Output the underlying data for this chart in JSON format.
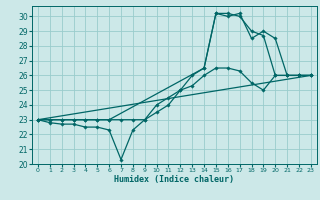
{
  "xlabel": "Humidex (Indice chaleur)",
  "bg_color": "#cce8e8",
  "line_color": "#006666",
  "grid_color": "#99cccc",
  "xlim": [
    -0.5,
    23.5
  ],
  "ylim": [
    20,
    30.7
  ],
  "xticks": [
    0,
    1,
    2,
    3,
    4,
    5,
    6,
    7,
    8,
    9,
    10,
    11,
    12,
    13,
    14,
    15,
    16,
    17,
    18,
    19,
    20,
    21,
    22,
    23
  ],
  "yticks": [
    20,
    21,
    22,
    23,
    24,
    25,
    26,
    27,
    28,
    29,
    30
  ],
  "lines": [
    {
      "x": [
        0,
        1,
        2,
        3,
        4,
        5,
        6,
        7,
        8,
        9,
        10,
        11,
        12,
        13,
        14,
        15,
        16,
        17,
        18,
        19,
        20,
        21,
        22,
        23
      ],
      "y": [
        23,
        22.8,
        22.7,
        22.7,
        22.5,
        22.5,
        22.3,
        20.3,
        22.3,
        23.0,
        24.0,
        24.5,
        25.0,
        25.3,
        26.0,
        26.5,
        26.5,
        26.3,
        25.5,
        25.0,
        26.0,
        26.0,
        26.0,
        26.0
      ]
    },
    {
      "x": [
        0,
        1,
        2,
        3,
        4,
        5,
        6,
        7,
        8,
        9,
        10,
        11,
        12,
        13,
        14,
        15,
        16,
        17,
        18,
        19,
        20,
        21,
        22,
        23
      ],
      "y": [
        23,
        23,
        23,
        23,
        23,
        23,
        23,
        23,
        23,
        23,
        23.5,
        24.0,
        25.0,
        26.0,
        26.5,
        30.2,
        30.2,
        30.0,
        29.0,
        28.7,
        26.0,
        26.0,
        26.0,
        26.0
      ]
    },
    {
      "x": [
        0,
        1,
        2,
        3,
        4,
        5,
        6,
        14,
        15,
        16,
        17,
        18,
        19,
        20,
        21,
        22,
        23
      ],
      "y": [
        23,
        23,
        23,
        23,
        23,
        23,
        23,
        26.5,
        30.2,
        30.0,
        30.2,
        28.5,
        29.0,
        28.5,
        26.0,
        26.0,
        26.0
      ]
    },
    {
      "x": [
        0,
        23
      ],
      "y": [
        23,
        26.0
      ]
    }
  ]
}
